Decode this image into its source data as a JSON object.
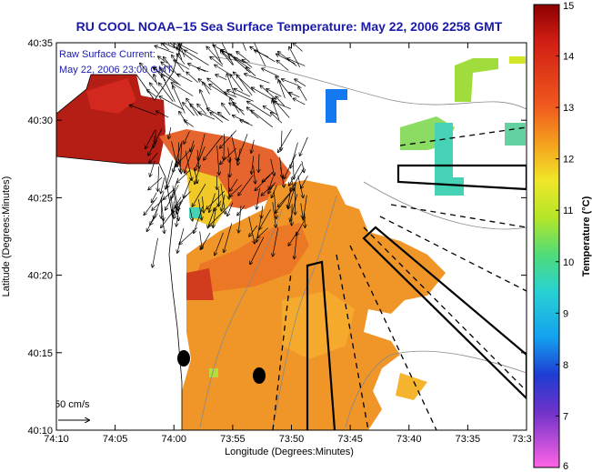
{
  "title": "RU COOL  NOAA–15  Sea Surface Temperature:  May 22, 2006 2258 GMT",
  "legend": {
    "line1": "Raw Surface Current:",
    "line2": "May 22, 2006 23:00 GMT"
  },
  "scale_label": "50 cm/s",
  "x_axis": {
    "label": "Longitude (Degrees:Minutes)",
    "ticks": [
      "74:10",
      "74:05",
      "74:00",
      "73:55",
      "73:50",
      "73:45",
      "73:40",
      "73:35",
      "73:3"
    ]
  },
  "y_axis": {
    "label": "Latitude (Degrees:Minutes)",
    "ticks": [
      "40:35",
      "40:30",
      "40:25",
      "40:20",
      "40:15",
      "40:10"
    ]
  },
  "colorbar": {
    "label": "Temperature (°C)",
    "ticks": [
      "15",
      "14",
      "13",
      "12",
      "11",
      "10",
      "9",
      "8",
      "7",
      "6"
    ],
    "min": 6,
    "max": 15
  },
  "colors": {
    "title": "#1a1aa8",
    "land": "#ffffff",
    "warm": "#c81e14",
    "mid": "#f08c14",
    "cool": "#46d2b4"
  }
}
